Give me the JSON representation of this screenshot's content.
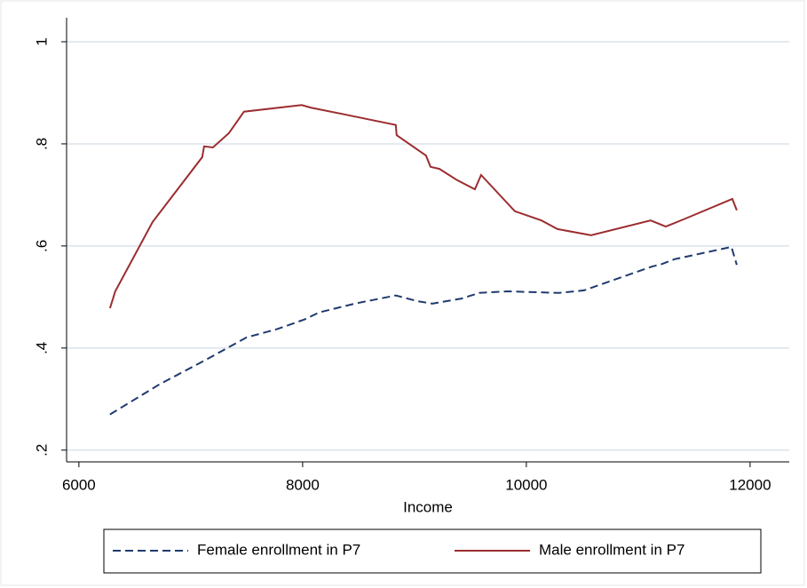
{
  "chart_data": {
    "type": "line",
    "x_label": "Income",
    "xlim": [
      5890,
      12350
    ],
    "xticks": [
      6000,
      8000,
      10000,
      12000
    ],
    "ylim": [
      0.177,
      1.047
    ],
    "yticks": [
      {
        "value": 0.2,
        "label": ".2"
      },
      {
        "value": 0.4,
        "label": ".4"
      },
      {
        "value": 0.6,
        "label": ".6"
      },
      {
        "value": 0.8,
        "label": ".8"
      },
      1
    ],
    "grid": true,
    "legend": "bottom",
    "series": [
      {
        "name": "Female enrollment in P7",
        "color": "#1f3a6e",
        "dash": true,
        "x": [
          6278,
          6722,
          7135,
          7500,
          7770,
          8016,
          8151,
          8468,
          8833,
          9024,
          9159,
          9421,
          9579,
          9833,
          10294,
          10516,
          11127,
          11206,
          11325,
          11833,
          11881
        ],
        "values": [
          0.27,
          0.329,
          0.377,
          0.421,
          0.437,
          0.456,
          0.47,
          0.487,
          0.503,
          0.492,
          0.487,
          0.497,
          0.508,
          0.511,
          0.508,
          0.513,
          0.56,
          0.564,
          0.574,
          0.598,
          0.563
        ]
      },
      {
        "name": "Male enrollment in P7",
        "color": "#9b2d30",
        "dash": false,
        "x": [
          6278,
          6325,
          6659,
          7103,
          7119,
          7198,
          7341,
          7476,
          7992,
          8071,
          8413,
          8833,
          8841,
          9103,
          9143,
          9222,
          9381,
          9540,
          9595,
          9897,
          10135,
          10278,
          10579,
          11111,
          11246,
          11405,
          11841,
          11881
        ],
        "values": [
          0.478,
          0.511,
          0.647,
          0.774,
          0.795,
          0.793,
          0.821,
          0.863,
          0.876,
          0.871,
          0.856,
          0.837,
          0.817,
          0.777,
          0.755,
          0.751,
          0.729,
          0.711,
          0.739,
          0.668,
          0.65,
          0.633,
          0.621,
          0.65,
          0.638,
          0.652,
          0.692,
          0.67
        ]
      }
    ]
  }
}
